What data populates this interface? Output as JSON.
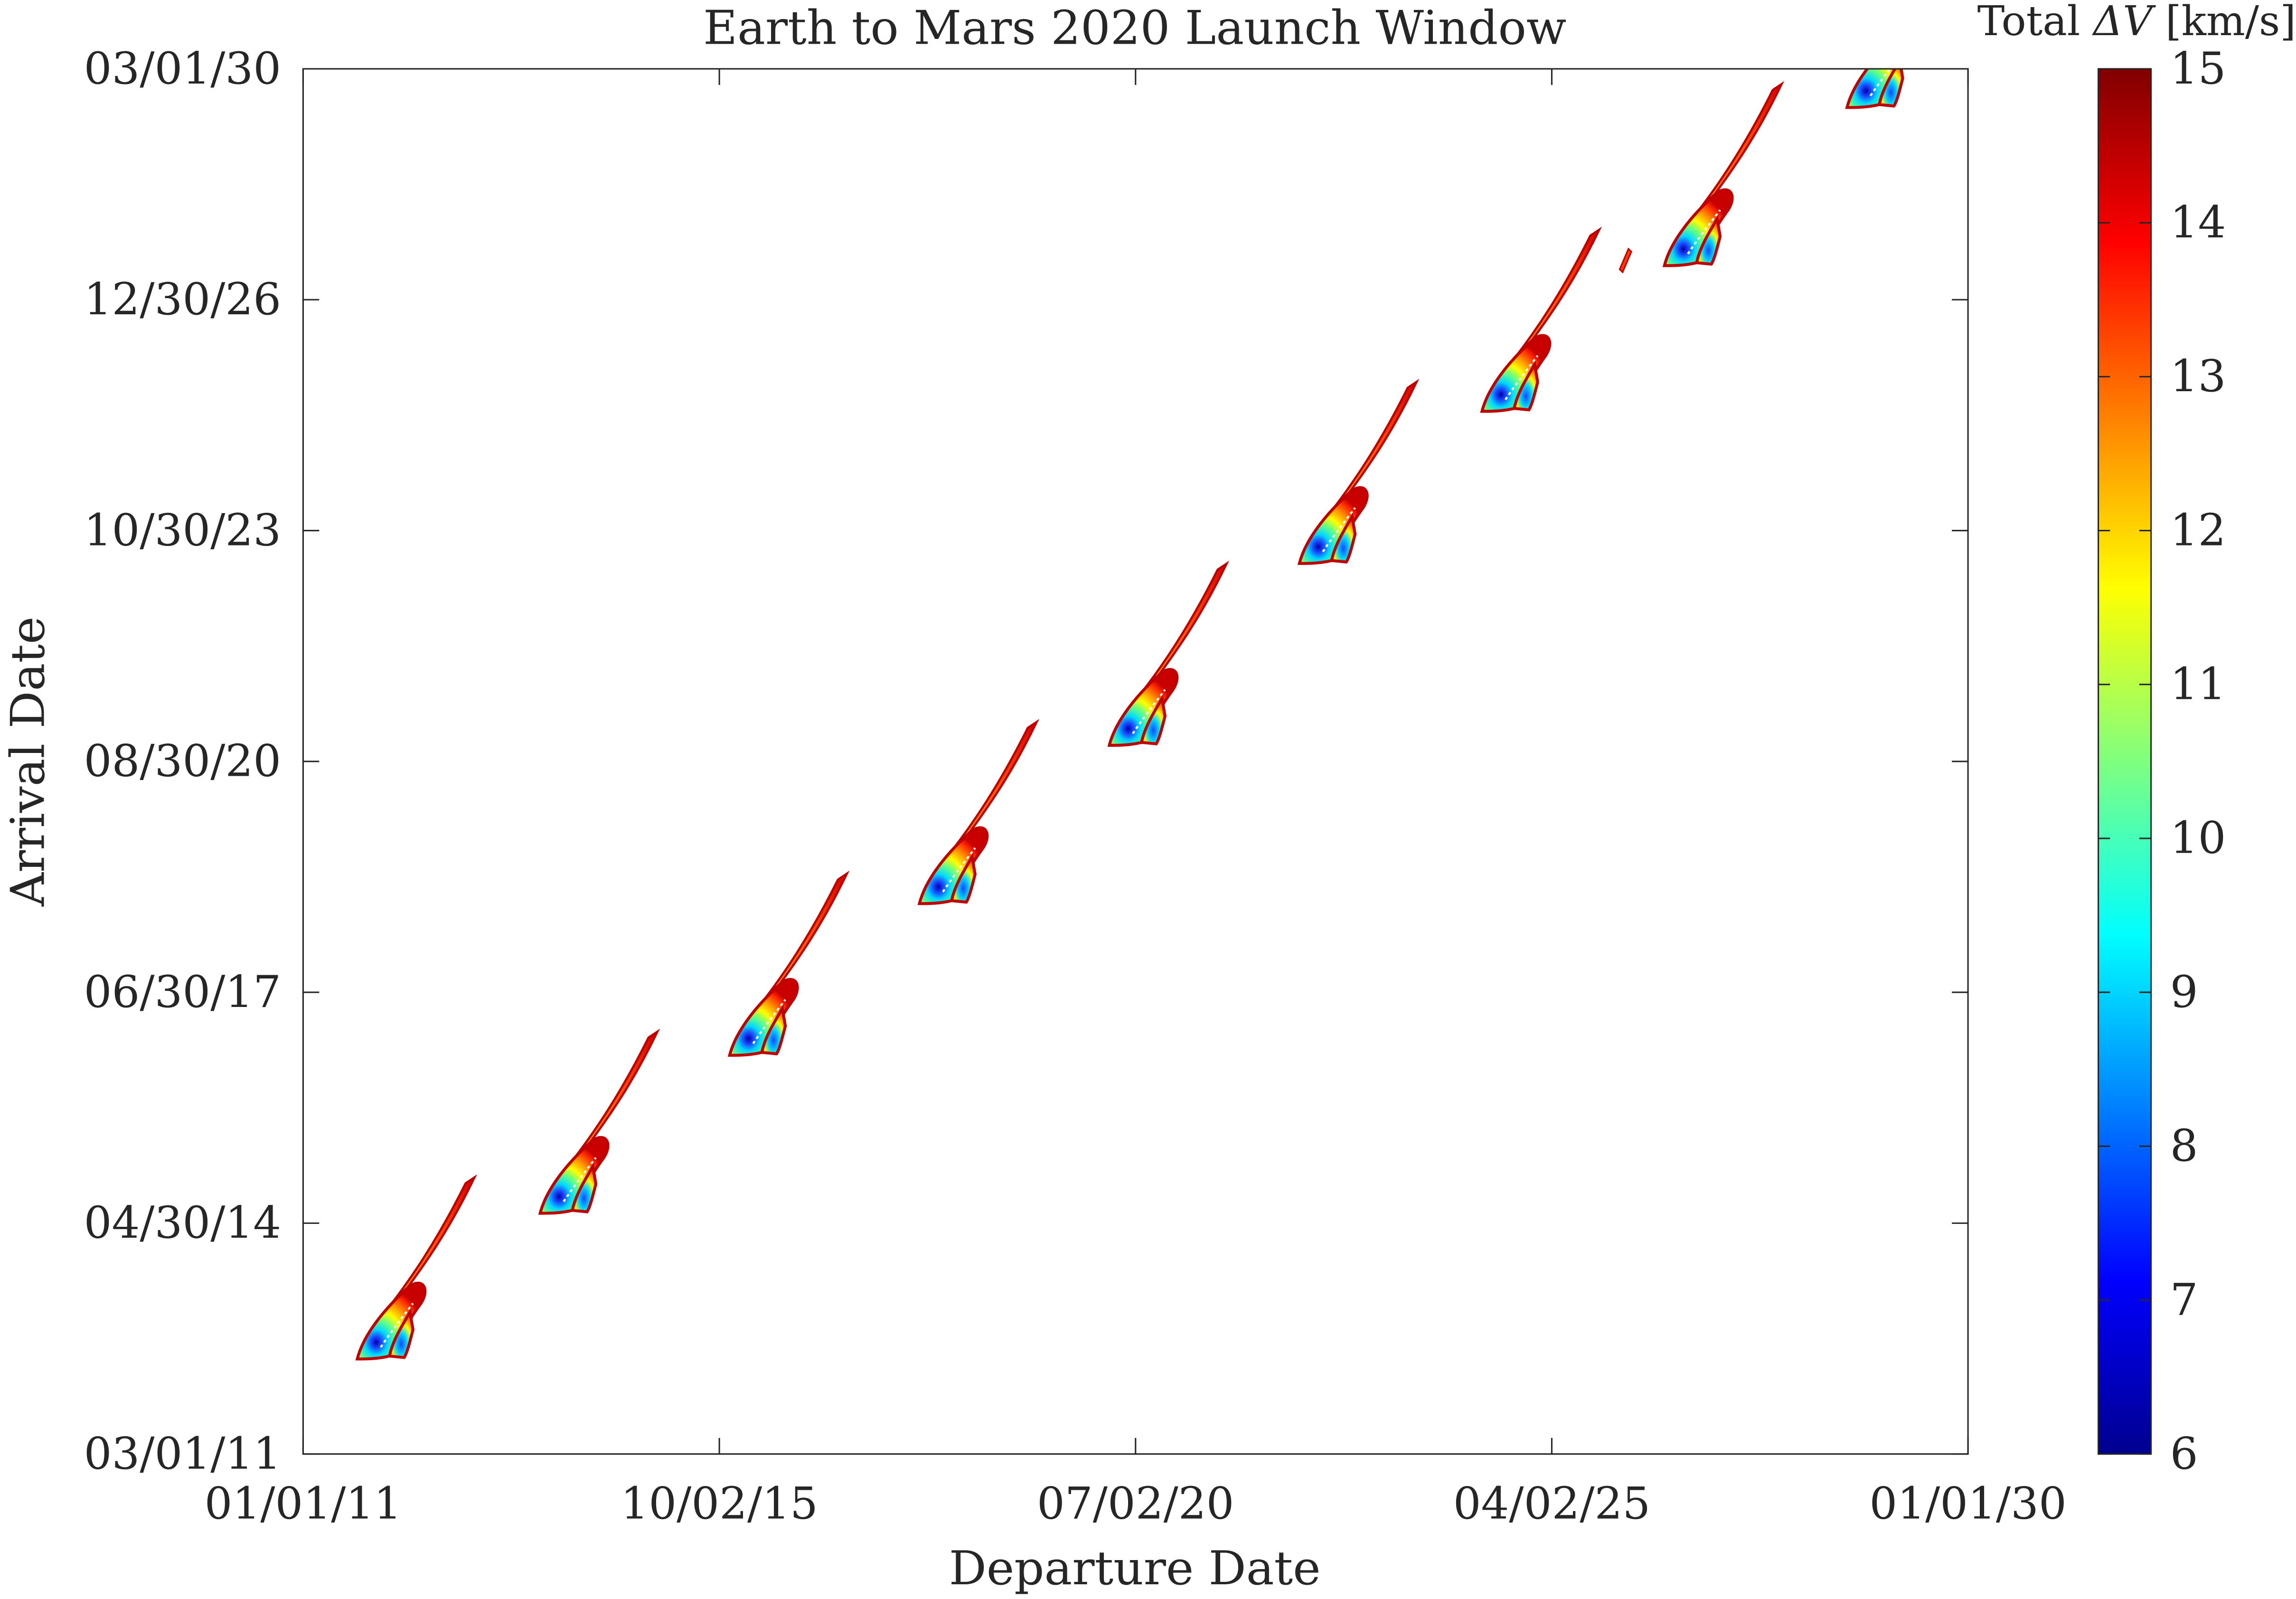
{
  "chart_data": {
    "type": "heatmap",
    "title": "Earth to Mars 2020 Launch Window",
    "xlabel": "Departure Date",
    "ylabel": "Arrival Date",
    "x_ticks": [
      "01/01/11",
      "10/02/15",
      "07/02/20",
      "04/02/25",
      "01/01/30"
    ],
    "y_ticks": [
      "03/01/11",
      "04/30/14",
      "06/30/17",
      "08/30/20",
      "10/30/23",
      "12/30/26",
      "03/01/30"
    ],
    "xlim": [
      "01/01/11",
      "01/01/30"
    ],
    "ylim": [
      "03/01/11",
      "03/01/30"
    ],
    "colorbar": {
      "label_prefix": "Total ",
      "label_symbol": "ΔV",
      "label_unit": " [km/s]",
      "min": 6,
      "max": 15,
      "ticks": [
        "6",
        "7",
        "8",
        "9",
        "10",
        "11",
        "12",
        "13",
        "14",
        "15"
      ],
      "colormap": "jet"
    },
    "launch_windows": [
      {
        "departure": "2011-12",
        "arrival": "2012-09",
        "min_dv": 6.5
      },
      {
        "departure": "2014-01",
        "arrival": "2014-09",
        "min_dv": 6.8
      },
      {
        "departure": "2016-03",
        "arrival": "2016-11",
        "min_dv": 7.2
      },
      {
        "departure": "2018-05",
        "arrival": "2018-12",
        "min_dv": 7.0
      },
      {
        "departure": "2020-07",
        "arrival": "2021-02",
        "min_dv": 7.0
      },
      {
        "departure": "2022-09",
        "arrival": "2023-08",
        "min_dv": 7.0
      },
      {
        "departure": "2024-10",
        "arrival": "2025-09",
        "min_dv": 7.3
      },
      {
        "departure": "2026-11",
        "arrival": "2027-09",
        "min_dv": 7.8
      },
      {
        "departure": "2028-12",
        "arrival": "2029-11",
        "min_dv": 8.0
      }
    ]
  }
}
